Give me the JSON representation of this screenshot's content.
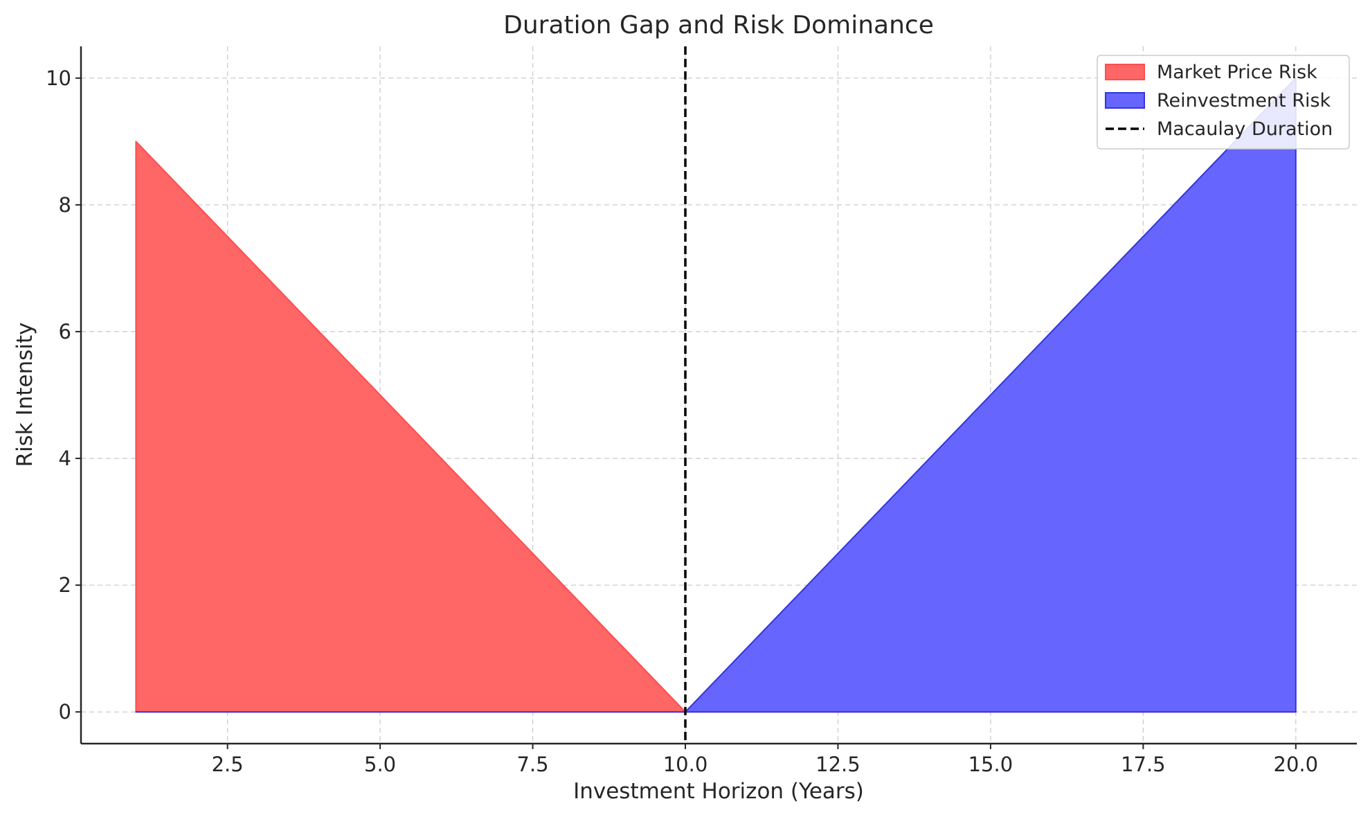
{
  "chart_data": {
    "type": "area",
    "title": "Duration Gap and Risk Dominance",
    "xlabel": "Investment Horizon (Years)",
    "ylabel": "Risk Intensity",
    "xlim": [
      0.1,
      21.0
    ],
    "ylim": [
      -0.5,
      10.5
    ],
    "xticks": [
      2.5,
      5.0,
      7.5,
      10.0,
      12.5,
      15.0,
      17.5,
      20.0
    ],
    "xtick_labels": [
      "2.5",
      "5.0",
      "7.5",
      "10.0",
      "12.5",
      "15.0",
      "17.5",
      "20.0"
    ],
    "yticks": [
      0,
      2,
      4,
      6,
      8,
      10
    ],
    "ytick_labels": [
      "0",
      "2",
      "4",
      "6",
      "8",
      "10"
    ],
    "grid": true,
    "legend_position": "top-right",
    "series": [
      {
        "name": "Market Price Risk",
        "kind": "fill",
        "color": "#ff6666",
        "edge_color": "#ff4d4d",
        "x": [
          1,
          10,
          20
        ],
        "y": [
          9,
          0,
          0
        ]
      },
      {
        "name": "Reinvestment Risk",
        "kind": "fill",
        "color": "#6666ff",
        "edge_color": "#3333dd",
        "x": [
          1,
          10,
          20
        ],
        "y": [
          0,
          0,
          10
        ]
      },
      {
        "name": "Macaulay Duration",
        "kind": "vline",
        "color": "#000000",
        "x": 10
      }
    ]
  }
}
